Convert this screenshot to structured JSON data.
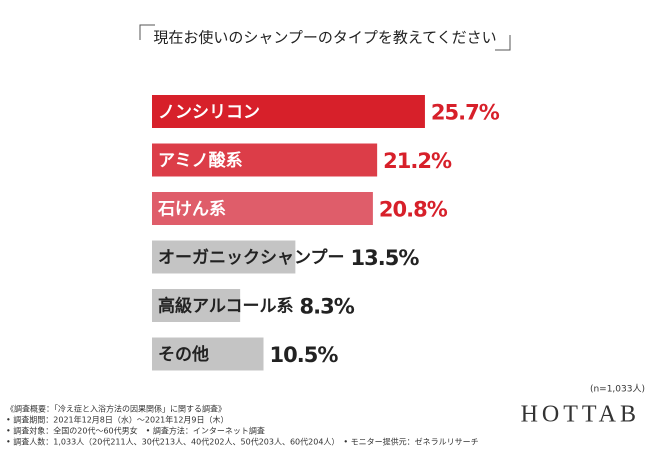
{
  "chart_data": {
    "type": "bar",
    "orientation": "horizontal",
    "title": "現在お使いのシャンプーのタイプを教えてください",
    "categories": [
      "ノンシリコン",
      "アミノ酸系",
      "石けん系",
      "オーガニックシャンプー",
      "高級アルコール系",
      "その他"
    ],
    "values": [
      25.7,
      21.2,
      20.8,
      13.5,
      8.3,
      10.5
    ],
    "value_labels": [
      "25.7%",
      "21.2%",
      "20.8%",
      "13.5%",
      "8.3%",
      "10.5%"
    ],
    "colors": [
      "#d7202a",
      "#dc3d48",
      "#df5d6a",
      "#c4c4c4",
      "#c4c4c4",
      "#c4c4c4"
    ],
    "value_label_colors": [
      "#d7202a",
      "#d7202a",
      "#d7202a",
      "#222222",
      "#222222",
      "#222222"
    ],
    "category_label_colors": [
      "#ffffff",
      "#ffffff",
      "#ffffff",
      "#222222",
      "#222222",
      "#222222"
    ],
    "sample_note": "(n=1,033人)"
  },
  "footer": {
    "notes": [
      "《調査概要：「冷え症と入浴方法の因果関係」に関する調査》",
      "• 調査期間：2021年12月8日（水）〜2021年12月9日（木）",
      "• 調査対象：全国の20代〜60代男女　• 調査方法：インターネット調査",
      "• 調査人数：1,033人（20代211人、30代213人、40代202人、50代203人、60代204人）　• モニター提供元：ゼネラルリサーチ"
    ],
    "logo": "HOTTAB"
  }
}
